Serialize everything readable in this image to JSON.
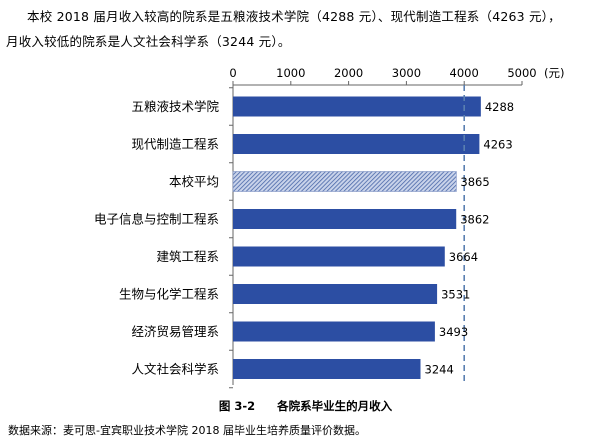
{
  "intro": {
    "line1": "本校 2018 届月收入较高的院系是五粮液技术学院（4288 元）、现代制造工程系（4263 元），",
    "line2": "月收入较低的院系是人文社会科学系（3244 元）。"
  },
  "chart_data": {
    "type": "bar",
    "orientation": "horizontal",
    "categories": [
      "五粮液技术学院",
      "现代制造工程系",
      "本校平均",
      "电子信息与控制工程系",
      "建筑工程系",
      "生物与化学工程系",
      "经济贸易管理系",
      "人文社会科学系"
    ],
    "values": [
      4288,
      4263,
      3865,
      3862,
      3664,
      3531,
      3493,
      3244
    ],
    "xlim": [
      0,
      5000
    ],
    "ticks": [
      "0",
      "1000",
      "2000",
      "3000",
      "4000",
      "5000"
    ],
    "unit": "(元)",
    "axis_position": "top",
    "reference_line": 4000,
    "highlight_category": "本校平均",
    "colors": {
      "bar": "#2c4ea3",
      "average": "#7f93c4",
      "reference": "#5a7fb0",
      "axis": "#666666"
    }
  },
  "caption": {
    "figure_no": "图 3-2",
    "title": "各院系毕业生的月收入"
  },
  "source": "数据来源：麦可思-宜宾职业技术学院 2018 届毕业生培养质量评价数据。"
}
